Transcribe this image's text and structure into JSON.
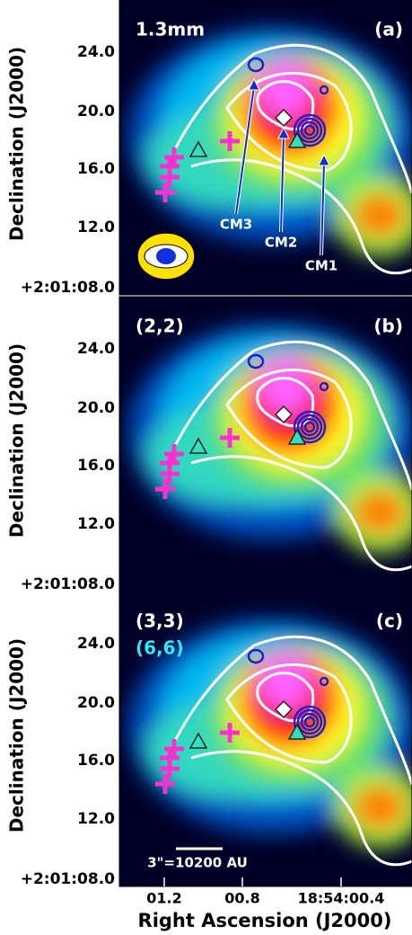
{
  "panels": [
    {
      "label_left": "1.3mm",
      "label_right": "(a)"
    },
    {
      "label_left": "(2,2)",
      "label_right": "(b)"
    },
    {
      "label_left": "(3,3)",
      "label_left2": "(6,6)",
      "label_right": "(c)"
    }
  ],
  "annotations": {
    "cm3": "CM3",
    "cm2": "CM2",
    "cm1": "CM1",
    "scale_bar": "3\"=10200 AU"
  },
  "y_axis": {
    "label": "Declination (J2000)",
    "ticks": [
      "24.0",
      "20.0",
      "16.0",
      "12.0",
      "+2:01:08.0"
    ]
  },
  "x_axis": {
    "label": "Right Ascension (J2000)",
    "ticks": [
      "01.2",
      "00.8",
      "18:54:00.4"
    ]
  }
}
